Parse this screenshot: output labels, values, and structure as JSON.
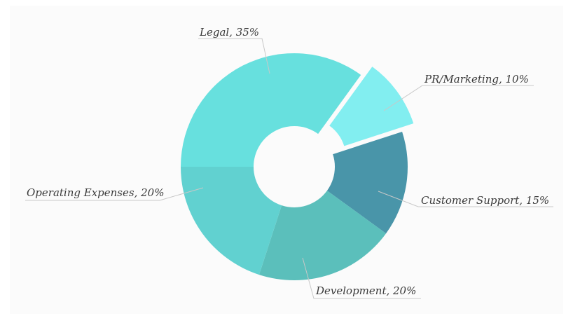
{
  "chart_data": {
    "type": "pie",
    "donut": true,
    "title": "",
    "legend": "none",
    "categories": [
      "PR/Marketing",
      "Customer Support",
      "Development",
      "Operating Expenses",
      "Legal"
    ],
    "values": [
      10,
      15,
      20,
      20,
      35
    ],
    "unit": "%",
    "labels": [
      "PR/Marketing, 10%",
      "Customer Support, 15%",
      "Development, 20%",
      "Operating Expenses, 20%",
      "Legal, 35%"
    ],
    "colors": [
      "#82eef0",
      "#4995a9",
      "#5bbfbb",
      "#61d1d0",
      "#67e0de"
    ],
    "exploded": "PR/Marketing",
    "background": "#fbfbfb"
  }
}
